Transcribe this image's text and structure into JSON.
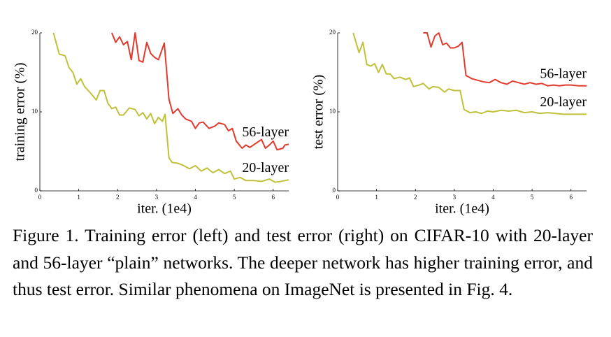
{
  "chart_data": [
    {
      "type": "line",
      "ylabel": "training error (%)",
      "xlabel": "iter. (1e4)",
      "xlim": [
        0,
        6.4
      ],
      "ylim": [
        0,
        20
      ],
      "xticks": [
        0,
        1,
        2,
        3,
        4,
        5,
        6
      ],
      "yticks": [
        0,
        10,
        20
      ],
      "series": [
        {
          "name": "56-layer",
          "color": "#e23b2e",
          "x": [
            1.85,
            1.95,
            2.05,
            2.15,
            2.25,
            2.35,
            2.45,
            2.55,
            2.65,
            2.75,
            2.85,
            2.95,
            3.05,
            3.2,
            3.32,
            3.42,
            3.55,
            3.65,
            3.75,
            3.9,
            4.0,
            4.1,
            4.2,
            4.35,
            4.5,
            4.6,
            4.75,
            4.85,
            4.95,
            5.05,
            5.2,
            5.3,
            5.4,
            5.55,
            5.7,
            5.8,
            5.9,
            6.0,
            6.1,
            6.25,
            6.3,
            6.4
          ],
          "values": [
            20,
            18.8,
            19.5,
            18.5,
            18.9,
            16.6,
            20,
            16.5,
            16.3,
            18.8,
            17.4,
            16.9,
            16.6,
            18.7,
            11.6,
            9.8,
            10.4,
            9.6,
            9.1,
            8.8,
            7.9,
            8.6,
            8.7,
            7.9,
            8.2,
            8.6,
            8.4,
            7.6,
            7.9,
            6.3,
            5.4,
            5.8,
            5.5,
            6.0,
            6.5,
            5.4,
            5.8,
            6.3,
            5.2,
            5.4,
            5.8,
            5.9
          ]
        },
        {
          "name": "20-layer",
          "color": "#bfc13a",
          "x": [
            0.35,
            0.5,
            0.65,
            0.75,
            0.85,
            0.95,
            1.05,
            1.15,
            1.3,
            1.45,
            1.55,
            1.65,
            1.75,
            1.85,
            1.95,
            2.05,
            2.15,
            2.3,
            2.45,
            2.55,
            2.65,
            2.75,
            2.85,
            2.95,
            3.05,
            3.15,
            3.22,
            3.32,
            3.4,
            3.55,
            3.7,
            3.85,
            4.0,
            4.15,
            4.3,
            4.45,
            4.6,
            4.75,
            4.9,
            5.0,
            5.15,
            5.3,
            5.5,
            5.7,
            5.9,
            6.05,
            6.2,
            6.4
          ],
          "values": [
            20,
            17.3,
            17.1,
            15.6,
            15.0,
            13.5,
            14.2,
            13.2,
            12.4,
            11.5,
            12.7,
            12.7,
            11.1,
            10.4,
            10.6,
            9.6,
            9.6,
            10.5,
            10.3,
            9.5,
            9.9,
            9.1,
            9.8,
            8.5,
            9.3,
            8.8,
            9.7,
            4.2,
            3.6,
            3.5,
            3.2,
            2.8,
            3.2,
            2.5,
            2.9,
            2.3,
            2.7,
            2.2,
            2.5,
            1.5,
            1.7,
            1.3,
            1.3,
            1.2,
            1.5,
            1.1,
            1.2,
            1.4
          ]
        }
      ]
    },
    {
      "type": "line",
      "ylabel": "test error (%)",
      "xlabel": "iter. (1e4)",
      "xlim": [
        0,
        6.4
      ],
      "ylim": [
        0,
        20
      ],
      "xticks": [
        0,
        1,
        2,
        3,
        4,
        5,
        6
      ],
      "yticks": [
        0,
        10,
        20
      ],
      "series": [
        {
          "name": "56-layer",
          "color": "#e23b2e",
          "x": [
            2.2,
            2.3,
            2.4,
            2.5,
            2.6,
            2.7,
            2.8,
            2.9,
            3.0,
            3.1,
            3.2,
            3.3,
            3.45,
            3.6,
            3.75,
            3.9,
            4.05,
            4.2,
            4.35,
            4.5,
            4.65,
            4.8,
            4.95,
            5.1,
            5.25,
            5.4,
            5.55,
            5.7,
            5.85,
            6.0,
            6.2,
            6.4
          ],
          "values": [
            20,
            20,
            18.2,
            19.6,
            20,
            18.5,
            18.7,
            18.1,
            18.1,
            18.3,
            18.8,
            14.6,
            14.2,
            14.0,
            13.8,
            13.7,
            14.1,
            13.7,
            13.5,
            13.9,
            13.7,
            13.5,
            13.7,
            13.5,
            13.6,
            13.3,
            13.4,
            13.3,
            13.4,
            13.4,
            13.3,
            13.3
          ]
        },
        {
          "name": "20-layer",
          "color": "#bfc13a",
          "x": [
            0.4,
            0.55,
            0.65,
            0.75,
            0.85,
            0.95,
            1.05,
            1.15,
            1.25,
            1.35,
            1.45,
            1.6,
            1.75,
            1.85,
            1.95,
            2.1,
            2.2,
            2.35,
            2.45,
            2.6,
            2.75,
            2.85,
            3.0,
            3.15,
            3.25,
            3.4,
            3.55,
            3.7,
            3.85,
            4.0,
            4.2,
            4.4,
            4.6,
            4.8,
            5.0,
            5.2,
            5.4,
            5.6,
            5.8,
            6.0,
            6.2,
            6.4
          ],
          "values": [
            20,
            17.5,
            18.8,
            16.0,
            15.8,
            16.1,
            15.0,
            16.0,
            14.8,
            14.8,
            14.2,
            14.4,
            14.1,
            14.3,
            13.2,
            13.4,
            13.6,
            12.9,
            13.2,
            13.1,
            12.5,
            12.9,
            12.7,
            12.7,
            10.3,
            9.9,
            10.0,
            9.8,
            10.1,
            10.0,
            10.2,
            10.1,
            10.2,
            9.9,
            10.0,
            9.8,
            9.9,
            9.8,
            9.7,
            9.7,
            9.7,
            9.7
          ]
        }
      ]
    }
  ],
  "caption": "Figure 1. Training error (left) and test error (right) on CIFAR-10 with 20-layer and 56-layer “plain” networks. The deeper network has higher training error, and thus test error. Similar phenomena on ImageNet is presented in Fig. 4."
}
